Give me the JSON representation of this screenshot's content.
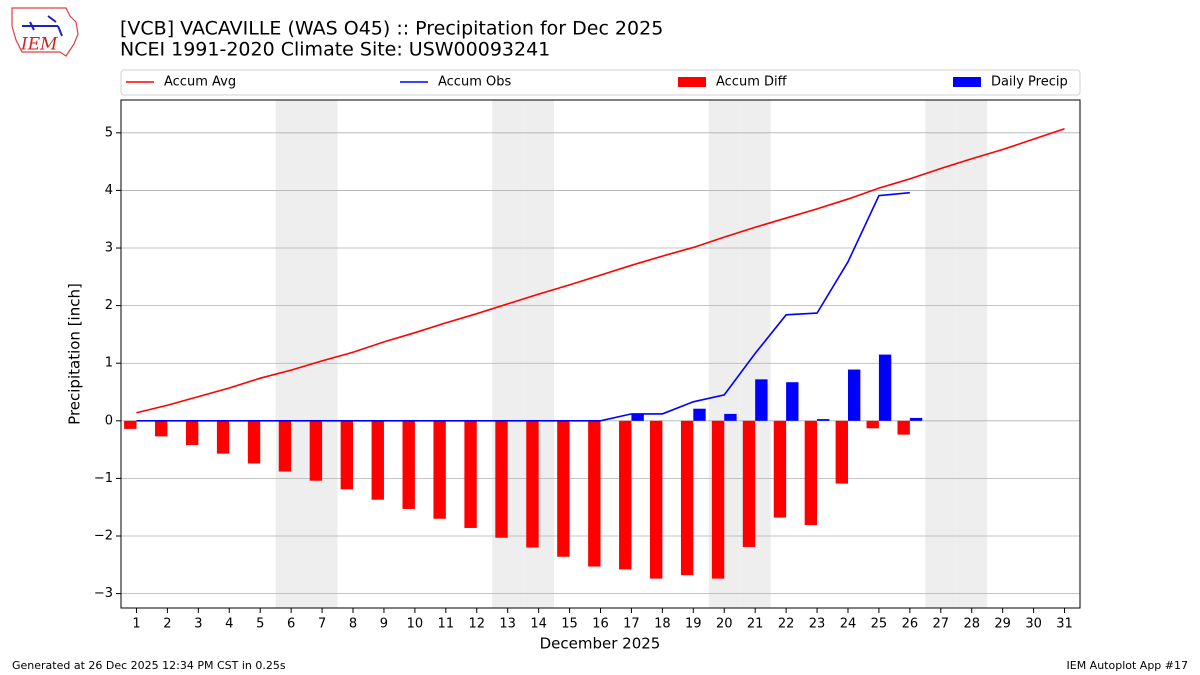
{
  "logo_text": "IEM",
  "footer_left": "Generated at 26 Dec 2025 12:34 PM CST in 0.25s",
  "footer_right": "IEM Autoplot App #17",
  "chart_data": {
    "type": "combo",
    "title": "[VCB] VACAVILLE (WAS O45) :: Precipitation for Dec 2025",
    "subtitle": "NCEI 1991-2020 Climate Site: USW00093241",
    "xlabel": "December 2025",
    "ylabel": "Precipitation [inch]",
    "x": [
      1,
      2,
      3,
      4,
      5,
      6,
      7,
      8,
      9,
      10,
      11,
      12,
      13,
      14,
      15,
      16,
      17,
      18,
      19,
      20,
      21,
      22,
      23,
      24,
      25,
      26,
      27,
      28,
      29,
      30,
      31
    ],
    "xlim": [
      0.5,
      31.5
    ],
    "xticks": [
      1,
      2,
      3,
      4,
      5,
      6,
      7,
      8,
      9,
      10,
      11,
      12,
      13,
      14,
      15,
      16,
      17,
      18,
      19,
      20,
      21,
      22,
      23,
      24,
      25,
      26,
      27,
      28,
      29,
      30,
      31
    ],
    "ylim": [
      -3.25,
      5.57
    ],
    "yticks": [
      {
        "value": -3,
        "label": "−3"
      },
      {
        "value": -2,
        "label": "−2"
      },
      {
        "value": -1,
        "label": "−1"
      },
      0,
      1,
      2,
      3,
      4,
      5
    ],
    "grid": true,
    "legend": "top",
    "shaded_days": [
      6,
      7,
      13,
      14,
      20,
      21,
      27,
      28
    ],
    "series": [
      {
        "name": "Accum Avg",
        "type": "line",
        "color": "#ff0000",
        "values": [
          0.14,
          0.27,
          0.42,
          0.57,
          0.74,
          0.88,
          1.04,
          1.19,
          1.37,
          1.53,
          1.7,
          1.86,
          2.03,
          2.2,
          2.36,
          2.53,
          2.7,
          2.86,
          3.01,
          3.19,
          3.36,
          3.52,
          3.68,
          3.85,
          4.04,
          4.2,
          4.38,
          4.55,
          4.71,
          4.89,
          5.07
        ]
      },
      {
        "name": "Accum Obs",
        "type": "line",
        "color": "#0000ff",
        "values": [
          0,
          0,
          0,
          0,
          0,
          0,
          0,
          0,
          0,
          0,
          0,
          0,
          0,
          0,
          0,
          0,
          0.12,
          0.12,
          0.33,
          0.45,
          1.17,
          1.84,
          1.87,
          2.76,
          3.91,
          3.96,
          null,
          null,
          null,
          null,
          null
        ]
      },
      {
        "name": "Accum Diff",
        "type": "bar",
        "color": "#ff0000",
        "offset": -0.2,
        "width": 0.4,
        "values": [
          -0.14,
          -0.27,
          -0.42,
          -0.57,
          -0.74,
          -0.88,
          -1.04,
          -1.19,
          -1.37,
          -1.53,
          -1.7,
          -1.86,
          -2.03,
          -2.2,
          -2.36,
          -2.53,
          -2.58,
          -2.74,
          -2.68,
          -2.74,
          -2.19,
          -1.68,
          -1.81,
          -1.09,
          -0.13,
          -0.24,
          null,
          null,
          null,
          null,
          null
        ]
      },
      {
        "name": "Daily Precip",
        "type": "bar",
        "color": "#0000ff",
        "offset": 0.2,
        "width": 0.4,
        "values": [
          0,
          0,
          0,
          0,
          0,
          0,
          0,
          0,
          0,
          0,
          0,
          0,
          0,
          0,
          0,
          0,
          0.12,
          0,
          0.21,
          0.12,
          0.72,
          0.67,
          0.03,
          0.89,
          1.15,
          0.05,
          null,
          null,
          null,
          null,
          null
        ]
      }
    ]
  }
}
